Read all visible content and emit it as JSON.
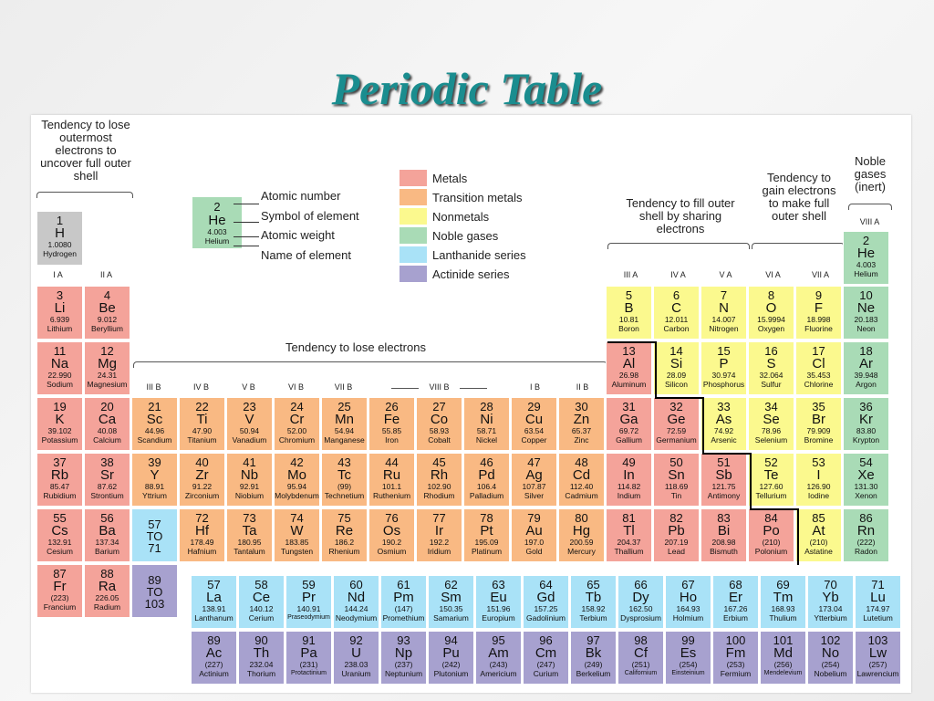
{
  "title": "Periodic Table",
  "notes": {
    "lose_outer": "Tendency to lose outermost electrons to uncover full outer shell",
    "fill_outer": "Tendency to fill outer shell by sharing electrons",
    "gain": "Tendency to gain electrons to make full outer shell",
    "noble_inert": "Noble gases (inert)",
    "lose_electrons": "Tendency to lose electrons"
  },
  "key": {
    "number": "2",
    "symbol": "He",
    "weight": "4.003",
    "name": "Helium",
    "labels": [
      "Atomic number",
      "Symbol of element",
      "Atomic weight",
      "Name of element"
    ]
  },
  "legend": [
    {
      "label": "Metals",
      "color": "#f4a39a"
    },
    {
      "label": "Transition metals",
      "color": "#f9b983"
    },
    {
      "label": "Nonmetals",
      "color": "#fbf98e"
    },
    {
      "label": "Noble gases",
      "color": "#a9dbb6"
    },
    {
      "label": "Lanthanide series",
      "color": "#a9e2f7"
    },
    {
      "label": "Actinide series",
      "color": "#a7a1cf"
    }
  ],
  "group_labels": {
    "IA": "I A",
    "IIA": "II A",
    "IIIB": "III B",
    "IVB": "IV B",
    "VB": "V B",
    "VIB": "VI B",
    "VIIB": "VII B",
    "VIIIB": "VIII B",
    "IB": "I B",
    "IIB": "II B",
    "IIIA": "III A",
    "IVA": "IV A",
    "VA": "V A",
    "VIA": "VI A",
    "VIIA": "VII A",
    "VIIIA": "VIII A"
  },
  "elements": [
    [
      "1",
      "H",
      "1.0080",
      "Hydrogen"
    ],
    [
      "2",
      "He",
      "4.003",
      "Helium"
    ],
    [
      "3",
      "Li",
      "6.939",
      "Lithium"
    ],
    [
      "4",
      "Be",
      "9.012",
      "Beryllium"
    ],
    [
      "5",
      "B",
      "10.81",
      "Boron"
    ],
    [
      "6",
      "C",
      "12.011",
      "Carbon"
    ],
    [
      "7",
      "N",
      "14.007",
      "Nitrogen"
    ],
    [
      "8",
      "O",
      "15.9994",
      "Oxygen"
    ],
    [
      "9",
      "F",
      "18.998",
      "Fluorine"
    ],
    [
      "10",
      "Ne",
      "20.183",
      "Neon"
    ],
    [
      "11",
      "Na",
      "22.990",
      "Sodium"
    ],
    [
      "12",
      "Mg",
      "24.31",
      "Magnesium"
    ],
    [
      "13",
      "Al",
      "26.98",
      "Aluminum"
    ],
    [
      "14",
      "Si",
      "28.09",
      "Silicon"
    ],
    [
      "15",
      "P",
      "30.974",
      "Phosphorus"
    ],
    [
      "16",
      "S",
      "32.064",
      "Sulfur"
    ],
    [
      "17",
      "Cl",
      "35.453",
      "Chlorine"
    ],
    [
      "18",
      "Ar",
      "39.948",
      "Argon"
    ],
    [
      "19",
      "K",
      "39.102",
      "Potassium"
    ],
    [
      "20",
      "Ca",
      "40.08",
      "Calcium"
    ],
    [
      "21",
      "Sc",
      "44.96",
      "Scandium"
    ],
    [
      "22",
      "Ti",
      "47.90",
      "Titanium"
    ],
    [
      "23",
      "V",
      "50.94",
      "Vanadium"
    ],
    [
      "24",
      "Cr",
      "52.00",
      "Chromium"
    ],
    [
      "25",
      "Mn",
      "54.94",
      "Manganese"
    ],
    [
      "26",
      "Fe",
      "55.85",
      "Iron"
    ],
    [
      "27",
      "Co",
      "58.93",
      "Cobalt"
    ],
    [
      "28",
      "Ni",
      "58.71",
      "Nickel"
    ],
    [
      "29",
      "Cu",
      "63.54",
      "Copper"
    ],
    [
      "30",
      "Zn",
      "65.37",
      "Zinc"
    ],
    [
      "31",
      "Ga",
      "69.72",
      "Gallium"
    ],
    [
      "32",
      "Ge",
      "72.59",
      "Germanium"
    ],
    [
      "33",
      "As",
      "74.92",
      "Arsenic"
    ],
    [
      "34",
      "Se",
      "78.96",
      "Selenium"
    ],
    [
      "35",
      "Br",
      "79.909",
      "Bromine"
    ],
    [
      "36",
      "Kr",
      "83.80",
      "Krypton"
    ],
    [
      "37",
      "Rb",
      "85.47",
      "Rubidium"
    ],
    [
      "38",
      "Sr",
      "87.62",
      "Strontium"
    ],
    [
      "39",
      "Y",
      "88.91",
      "Yttrium"
    ],
    [
      "40",
      "Zr",
      "91.22",
      "Zirconium"
    ],
    [
      "41",
      "Nb",
      "92.91",
      "Niobium"
    ],
    [
      "42",
      "Mo",
      "95.94",
      "Molybdenum"
    ],
    [
      "43",
      "Tc",
      "(99)",
      "Technetium"
    ],
    [
      "44",
      "Ru",
      "101.1",
      "Ruthenium"
    ],
    [
      "45",
      "Rh",
      "102.90",
      "Rhodium"
    ],
    [
      "46",
      "Pd",
      "106.4",
      "Palladium"
    ],
    [
      "47",
      "Ag",
      "107.87",
      "Silver"
    ],
    [
      "48",
      "Cd",
      "112.40",
      "Cadmium"
    ],
    [
      "49",
      "In",
      "114.82",
      "Indium"
    ],
    [
      "50",
      "Sn",
      "118.69",
      "Tin"
    ],
    [
      "51",
      "Sb",
      "121.75",
      "Antimony"
    ],
    [
      "52",
      "Te",
      "127.60",
      "Tellurium"
    ],
    [
      "53",
      "I",
      "126.90",
      "Iodine"
    ],
    [
      "54",
      "Xe",
      "131.30",
      "Xenon"
    ],
    [
      "55",
      "Cs",
      "132.91",
      "Cesium"
    ],
    [
      "56",
      "Ba",
      "137.34",
      "Barium"
    ],
    [
      "57 TO 71",
      "",
      "",
      ""
    ],
    [
      "72",
      "Hf",
      "178.49",
      "Hafnium"
    ],
    [
      "73",
      "Ta",
      "180.95",
      "Tantalum"
    ],
    [
      "74",
      "W",
      "183.85",
      "Tungsten"
    ],
    [
      "75",
      "Re",
      "186.2",
      "Rhenium"
    ],
    [
      "76",
      "Os",
      "190.2",
      "Osmium"
    ],
    [
      "77",
      "Ir",
      "192.2",
      "Iridium"
    ],
    [
      "78",
      "Pt",
      "195.09",
      "Platinum"
    ],
    [
      "79",
      "Au",
      "197.0",
      "Gold"
    ],
    [
      "80",
      "Hg",
      "200.59",
      "Mercury"
    ],
    [
      "81",
      "Tl",
      "204.37",
      "Thallium"
    ],
    [
      "82",
      "Pb",
      "207.19",
      "Lead"
    ],
    [
      "83",
      "Bi",
      "208.98",
      "Bismuth"
    ],
    [
      "84",
      "Po",
      "(210)",
      "Polonium"
    ],
    [
      "85",
      "At",
      "(210)",
      "Astatine"
    ],
    [
      "86",
      "Rn",
      "(222)",
      "Radon"
    ],
    [
      "87",
      "Fr",
      "(223)",
      "Francium"
    ],
    [
      "88",
      "Ra",
      "226.05",
      "Radium"
    ],
    [
      "89 TO 103",
      "",
      "",
      ""
    ],
    [
      "57",
      "La",
      "138.91",
      "Lanthanum"
    ],
    [
      "58",
      "Ce",
      "140.12",
      "Cerium"
    ],
    [
      "59",
      "Pr",
      "140.91",
      "Praseodymium"
    ],
    [
      "60",
      "Nd",
      "144.24",
      "Neodymium"
    ],
    [
      "61",
      "Pm",
      "(147)",
      "Promethium"
    ],
    [
      "62",
      "Sm",
      "150.35",
      "Samarium"
    ],
    [
      "63",
      "Eu",
      "151.96",
      "Europium"
    ],
    [
      "64",
      "Gd",
      "157.25",
      "Gadolinium"
    ],
    [
      "65",
      "Tb",
      "158.92",
      "Terbium"
    ],
    [
      "66",
      "Dy",
      "162.50",
      "Dysprosium"
    ],
    [
      "67",
      "Ho",
      "164.93",
      "Holmium"
    ],
    [
      "68",
      "Er",
      "167.26",
      "Erbium"
    ],
    [
      "69",
      "Tm",
      "168.93",
      "Thulium"
    ],
    [
      "70",
      "Yb",
      "173.04",
      "Ytterbium"
    ],
    [
      "71",
      "Lu",
      "174.97",
      "Lutetium"
    ],
    [
      "89",
      "Ac",
      "(227)",
      "Actinium"
    ],
    [
      "90",
      "Th",
      "232.04",
      "Thorium"
    ],
    [
      "91",
      "Pa",
      "(231)",
      "Protactinium"
    ],
    [
      "92",
      "U",
      "238.03",
      "Uranium"
    ],
    [
      "93",
      "Np",
      "(237)",
      "Neptunium"
    ],
    [
      "94",
      "Pu",
      "(242)",
      "Plutonium"
    ],
    [
      "95",
      "Am",
      "(243)",
      "Americium"
    ],
    [
      "96",
      "Cm",
      "(247)",
      "Curium"
    ],
    [
      "97",
      "Bk",
      "(249)",
      "Berkelium"
    ],
    [
      "98",
      "Cf",
      "(251)",
      "Californium"
    ],
    [
      "99",
      "Es",
      "(254)",
      "Einsteinium"
    ],
    [
      "100",
      "Fm",
      "(253)",
      "Fermium"
    ],
    [
      "101",
      "Md",
      "(256)",
      "Mendelevium"
    ],
    [
      "102",
      "No",
      "(254)",
      "Nobelium"
    ],
    [
      "103",
      "Lw",
      "(257)",
      "Lawrencium"
    ]
  ],
  "categories": {
    "metal": [
      "1",
      "3",
      "4",
      "11",
      "12",
      "19",
      "20",
      "37",
      "38",
      "55",
      "56",
      "87",
      "88",
      "13",
      "31",
      "32",
      "49",
      "50",
      "51",
      "81",
      "82",
      "83",
      "84"
    ],
    "nonmetal": [
      "5",
      "6",
      "7",
      "8",
      "9",
      "14",
      "15",
      "16",
      "17",
      "33",
      "34",
      "35",
      "52",
      "53",
      "85"
    ],
    "noble": [
      "2",
      "10",
      "18",
      "36",
      "54",
      "86"
    ]
  }
}
